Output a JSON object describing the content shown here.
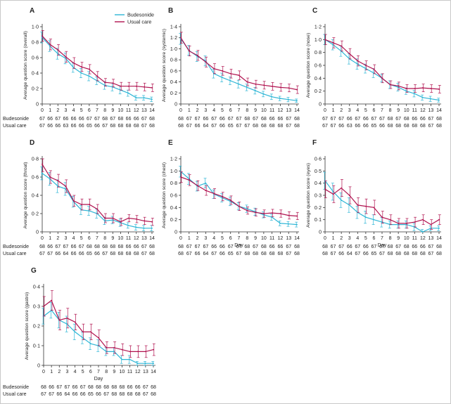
{
  "legend": {
    "budesonide": "Budesonide",
    "usual_care": "Usual care"
  },
  "colors": {
    "budesonide": "#2eb6d6",
    "usual_care": "#b0124f",
    "axis": "#333333",
    "text": "#222222"
  },
  "chart_data": [
    {
      "type": "line",
      "panel": "A",
      "ylabel": "Average question score (overall)",
      "xlabel": "",
      "ylim": [
        0,
        1.0
      ],
      "yticks": [
        0,
        0.2,
        0.4,
        0.6,
        0.8,
        1.0
      ],
      "yticklabels": [
        "0",
        "0·2",
        "0·4",
        "0·6",
        "0·8",
        "1·0"
      ],
      "x": [
        0,
        1,
        2,
        3,
        4,
        5,
        6,
        7,
        8,
        9,
        10,
        11,
        12,
        13,
        14
      ],
      "series": [
        {
          "name": "Budesonide",
          "values": [
            0.86,
            0.75,
            0.65,
            0.59,
            0.47,
            0.4,
            0.36,
            0.3,
            0.24,
            0.22,
            0.18,
            0.14,
            0.08,
            0.08,
            0.06
          ],
          "ci": [
            0.07,
            0.07,
            0.07,
            0.07,
            0.06,
            0.06,
            0.06,
            0.05,
            0.05,
            0.05,
            0.05,
            0.04,
            0.03,
            0.03,
            0.03
          ]
        },
        {
          "name": "Usual care",
          "values": [
            0.88,
            0.77,
            0.7,
            0.61,
            0.53,
            0.48,
            0.45,
            0.36,
            0.28,
            0.27,
            0.23,
            0.23,
            0.23,
            0.22,
            0.21
          ],
          "ci": [
            0.07,
            0.07,
            0.07,
            0.07,
            0.07,
            0.06,
            0.06,
            0.06,
            0.05,
            0.05,
            0.05,
            0.05,
            0.05,
            0.05,
            0.05
          ]
        }
      ],
      "n_rows": [
        {
          "label": "Budesonide",
          "values": [
            "67",
            "66",
            "67",
            "66",
            "66",
            "66",
            "67",
            "67",
            "68",
            "67",
            "68",
            "66",
            "66",
            "67",
            "68"
          ]
        },
        {
          "label": "Usual care",
          "values": [
            "67",
            "66",
            "66",
            "63",
            "66",
            "66",
            "65",
            "66",
            "67",
            "68",
            "68",
            "68",
            "68",
            "67",
            "68"
          ]
        }
      ]
    },
    {
      "type": "line",
      "panel": "B",
      "ylabel": "Average question score (systemic)",
      "xlabel": "",
      "ylim": [
        0,
        1.4
      ],
      "yticks": [
        0,
        0.2,
        0.4,
        0.6,
        0.8,
        1.0,
        1.2,
        1.4
      ],
      "yticklabels": [
        "0",
        "0·2",
        "0·4",
        "0·6",
        "0·8",
        "1·0",
        "1·2",
        "1·4"
      ],
      "x": [
        0,
        1,
        2,
        3,
        4,
        5,
        6,
        7,
        8,
        9,
        10,
        11,
        12,
        13,
        14
      ],
      "series": [
        {
          "name": "Budesonide",
          "values": [
            1.18,
            0.97,
            0.86,
            0.78,
            0.55,
            0.48,
            0.42,
            0.36,
            0.3,
            0.24,
            0.18,
            0.13,
            0.1,
            0.08,
            0.06
          ],
          "ci": [
            0.1,
            0.09,
            0.09,
            0.09,
            0.08,
            0.08,
            0.07,
            0.07,
            0.06,
            0.06,
            0.05,
            0.05,
            0.04,
            0.04,
            0.03
          ]
        },
        {
          "name": "Usual care",
          "values": [
            1.2,
            0.96,
            0.88,
            0.76,
            0.64,
            0.6,
            0.55,
            0.52,
            0.4,
            0.36,
            0.34,
            0.32,
            0.3,
            0.29,
            0.26
          ],
          "ci": [
            0.1,
            0.09,
            0.09,
            0.09,
            0.09,
            0.08,
            0.08,
            0.08,
            0.07,
            0.07,
            0.07,
            0.07,
            0.07,
            0.07,
            0.07
          ]
        }
      ],
      "n_rows": [
        {
          "label": "",
          "values": [
            "68",
            "67",
            "67",
            "66",
            "67",
            "66",
            "67",
            "67",
            "68",
            "67",
            "68",
            "66",
            "66",
            "67",
            "68"
          ]
        },
        {
          "label": "",
          "values": [
            "68",
            "67",
            "66",
            "64",
            "67",
            "66",
            "65",
            "67",
            "67",
            "68",
            "68",
            "68",
            "68",
            "67",
            "68"
          ]
        }
      ]
    },
    {
      "type": "line",
      "panel": "C",
      "ylabel": "Average question score (nose)",
      "xlabel": "",
      "ylim": [
        0,
        1.2
      ],
      "yticks": [
        0,
        0.2,
        0.4,
        0.6,
        0.8,
        1.0,
        1.2
      ],
      "yticklabels": [
        "0",
        "0·2",
        "0·4",
        "0·6",
        "0·8",
        "1·0",
        "1·2"
      ],
      "x": [
        0,
        1,
        2,
        3,
        4,
        5,
        6,
        7,
        8,
        9,
        10,
        11,
        12,
        13,
        14
      ],
      "series": [
        {
          "name": "Budesonide",
          "values": [
            1.0,
            0.92,
            0.82,
            0.7,
            0.62,
            0.55,
            0.48,
            0.4,
            0.3,
            0.26,
            0.2,
            0.16,
            0.1,
            0.08,
            0.06
          ],
          "ci": [
            0.08,
            0.08,
            0.08,
            0.08,
            0.08,
            0.07,
            0.07,
            0.06,
            0.06,
            0.06,
            0.05,
            0.05,
            0.04,
            0.04,
            0.03
          ]
        },
        {
          "name": "Usual care",
          "values": [
            1.0,
            0.95,
            0.9,
            0.78,
            0.67,
            0.6,
            0.54,
            0.4,
            0.3,
            0.28,
            0.24,
            0.24,
            0.25,
            0.24,
            0.23
          ],
          "ci": [
            0.08,
            0.08,
            0.08,
            0.08,
            0.08,
            0.07,
            0.07,
            0.07,
            0.06,
            0.06,
            0.06,
            0.06,
            0.06,
            0.06,
            0.06
          ]
        }
      ],
      "n_rows": [
        {
          "label": "",
          "values": [
            "67",
            "67",
            "67",
            "66",
            "67",
            "66",
            "67",
            "67",
            "68",
            "67",
            "68",
            "66",
            "66",
            "67",
            "68"
          ]
        },
        {
          "label": "",
          "values": [
            "67",
            "67",
            "66",
            "63",
            "66",
            "66",
            "65",
            "66",
            "68",
            "68",
            "68",
            "68",
            "68",
            "67",
            "68"
          ]
        }
      ]
    },
    {
      "type": "line",
      "panel": "D",
      "ylabel": "Average question score (throat)",
      "xlabel": "",
      "ylim": [
        0,
        0.8
      ],
      "yticks": [
        0,
        0.2,
        0.4,
        0.6,
        0.8
      ],
      "yticklabels": [
        "0",
        "0·2",
        "0·4",
        "0·6",
        "0·8"
      ],
      "x": [
        0,
        1,
        2,
        3,
        4,
        5,
        6,
        7,
        8,
        9,
        10,
        11,
        12,
        13,
        14
      ],
      "series": [
        {
          "name": "Budesonide",
          "values": [
            0.64,
            0.58,
            0.5,
            0.47,
            0.33,
            0.24,
            0.23,
            0.2,
            0.12,
            0.13,
            0.1,
            0.07,
            0.05,
            0.04,
            0.04
          ],
          "ci": [
            0.07,
            0.07,
            0.07,
            0.07,
            0.06,
            0.05,
            0.05,
            0.05,
            0.04,
            0.04,
            0.04,
            0.03,
            0.03,
            0.03,
            0.03
          ]
        },
        {
          "name": "Usual care",
          "values": [
            0.74,
            0.6,
            0.56,
            0.5,
            0.34,
            0.3,
            0.3,
            0.25,
            0.15,
            0.15,
            0.11,
            0.15,
            0.14,
            0.12,
            0.11
          ],
          "ci": [
            0.08,
            0.07,
            0.07,
            0.07,
            0.06,
            0.06,
            0.06,
            0.05,
            0.05,
            0.05,
            0.04,
            0.04,
            0.04,
            0.04,
            0.04
          ]
        }
      ],
      "n_rows": [
        {
          "label": "Budesonide",
          "values": [
            "68",
            "66",
            "67",
            "67",
            "66",
            "67",
            "68",
            "68",
            "68",
            "68",
            "68",
            "66",
            "66",
            "67",
            "68"
          ]
        },
        {
          "label": "Usual care",
          "values": [
            "67",
            "67",
            "66",
            "64",
            "66",
            "66",
            "65",
            "66",
            "67",
            "68",
            "68",
            "68",
            "68",
            "67",
            "68"
          ]
        }
      ]
    },
    {
      "type": "line",
      "panel": "E",
      "ylabel": "Average question score (chest)",
      "xlabel": "Day",
      "ylim": [
        0,
        1.2
      ],
      "yticks": [
        0,
        0.2,
        0.4,
        0.6,
        0.8,
        1.0,
        1.2
      ],
      "yticklabels": [
        "0",
        "0·2",
        "0·4",
        "0·6",
        "0·8",
        "1·0",
        "1·2"
      ],
      "x": [
        0,
        1,
        2,
        3,
        4,
        5,
        6,
        7,
        8,
        9,
        10,
        11,
        12,
        13,
        14
      ],
      "series": [
        {
          "name": "Budesonide",
          "values": [
            0.99,
            0.87,
            0.75,
            0.8,
            0.62,
            0.56,
            0.5,
            0.42,
            0.38,
            0.33,
            0.28,
            0.24,
            0.14,
            0.13,
            0.12
          ],
          "ci": [
            0.09,
            0.09,
            0.08,
            0.08,
            0.07,
            0.07,
            0.07,
            0.06,
            0.06,
            0.06,
            0.05,
            0.05,
            0.04,
            0.04,
            0.04
          ]
        },
        {
          "name": "Usual care",
          "values": [
            0.9,
            0.85,
            0.76,
            0.68,
            0.63,
            0.58,
            0.52,
            0.42,
            0.35,
            0.32,
            0.3,
            0.31,
            0.3,
            0.27,
            0.26
          ],
          "ci": [
            0.09,
            0.09,
            0.08,
            0.08,
            0.08,
            0.07,
            0.07,
            0.07,
            0.06,
            0.06,
            0.06,
            0.06,
            0.06,
            0.06,
            0.06
          ]
        }
      ],
      "n_rows": [
        {
          "label": "",
          "values": [
            "68",
            "67",
            "67",
            "67",
            "66",
            "66",
            "67",
            "67",
            "68",
            "67",
            "68",
            "66",
            "66",
            "67",
            "68"
          ]
        },
        {
          "label": "",
          "values": [
            "68",
            "67",
            "66",
            "64",
            "67",
            "66",
            "65",
            "67",
            "68",
            "68",
            "68",
            "68",
            "68",
            "67",
            "68"
          ]
        }
      ]
    },
    {
      "type": "line",
      "panel": "F",
      "ylabel": "Average question score (eyes)",
      "xlabel": "Day",
      "ylim": [
        0,
        0.6
      ],
      "yticks": [
        0,
        0.1,
        0.2,
        0.3,
        0.4,
        0.5,
        0.6
      ],
      "yticklabels": [
        "0",
        "0·1",
        "0·2",
        "0·3",
        "0·4",
        "0·5",
        "0·6"
      ],
      "x": [
        0,
        1,
        2,
        3,
        4,
        5,
        6,
        7,
        8,
        9,
        10,
        11,
        12,
        13,
        14
      ],
      "series": [
        {
          "name": "Budesonide",
          "values": [
            0.42,
            0.33,
            0.26,
            0.22,
            0.16,
            0.12,
            0.1,
            0.08,
            0.06,
            0.06,
            0.06,
            0.04,
            0.0,
            0.03,
            0.03
          ],
          "ci": [
            0.07,
            0.07,
            0.06,
            0.06,
            0.05,
            0.05,
            0.04,
            0.04,
            0.03,
            0.03,
            0.03,
            0.03,
            0.02,
            0.02,
            0.02
          ]
        },
        {
          "name": "Usual care",
          "values": [
            0.35,
            0.31,
            0.36,
            0.3,
            0.22,
            0.21,
            0.2,
            0.12,
            0.1,
            0.07,
            0.07,
            0.08,
            0.1,
            0.06,
            0.1
          ],
          "ci": [
            0.07,
            0.07,
            0.07,
            0.07,
            0.06,
            0.06,
            0.06,
            0.05,
            0.04,
            0.04,
            0.04,
            0.04,
            0.04,
            0.04,
            0.04
          ]
        }
      ],
      "n_rows": [
        {
          "label": "",
          "values": [
            "68",
            "67",
            "67",
            "66",
            "67",
            "66",
            "67",
            "67",
            "68",
            "67",
            "68",
            "66",
            "66",
            "67",
            "68"
          ]
        },
        {
          "label": "",
          "values": [
            "68",
            "67",
            "66",
            "64",
            "67",
            "66",
            "65",
            "67",
            "68",
            "68",
            "68",
            "68",
            "68",
            "67",
            "68"
          ]
        }
      ]
    },
    {
      "type": "line",
      "panel": "G",
      "ylabel": "Average question score (gastro)",
      "xlabel": "Day",
      "ylim": [
        0,
        0.4
      ],
      "yticks": [
        0,
        0.1,
        0.2,
        0.3,
        0.4
      ],
      "yticklabels": [
        "0",
        "0·1",
        "0·2",
        "0·3",
        "0·4"
      ],
      "x": [
        0,
        1,
        2,
        3,
        4,
        5,
        6,
        7,
        8,
        9,
        10,
        11,
        12,
        13,
        14
      ],
      "series": [
        {
          "name": "Budesonide",
          "values": [
            0.25,
            0.28,
            0.23,
            0.21,
            0.17,
            0.14,
            0.11,
            0.1,
            0.07,
            0.07,
            0.03,
            0.03,
            0.01,
            0.01,
            0.01
          ],
          "ci": [
            0.04,
            0.04,
            0.04,
            0.04,
            0.04,
            0.03,
            0.03,
            0.03,
            0.02,
            0.02,
            0.02,
            0.02,
            0.01,
            0.01,
            0.01
          ]
        },
        {
          "name": "Usual care",
          "values": [
            0.3,
            0.33,
            0.23,
            0.24,
            0.22,
            0.17,
            0.17,
            0.14,
            0.09,
            0.09,
            0.08,
            0.07,
            0.07,
            0.07,
            0.08
          ],
          "ci": [
            0.05,
            0.05,
            0.05,
            0.05,
            0.04,
            0.04,
            0.04,
            0.04,
            0.03,
            0.03,
            0.03,
            0.03,
            0.03,
            0.03,
            0.03
          ]
        }
      ],
      "n_rows": [
        {
          "label": "Budesonide",
          "values": [
            "68",
            "66",
            "67",
            "67",
            "66",
            "67",
            "68",
            "68",
            "68",
            "68",
            "68",
            "66",
            "66",
            "67",
            "68"
          ]
        },
        {
          "label": "Usual care",
          "values": [
            "67",
            "67",
            "66",
            "64",
            "66",
            "66",
            "65",
            "66",
            "67",
            "68",
            "68",
            "68",
            "68",
            "67",
            "68"
          ]
        }
      ]
    }
  ]
}
